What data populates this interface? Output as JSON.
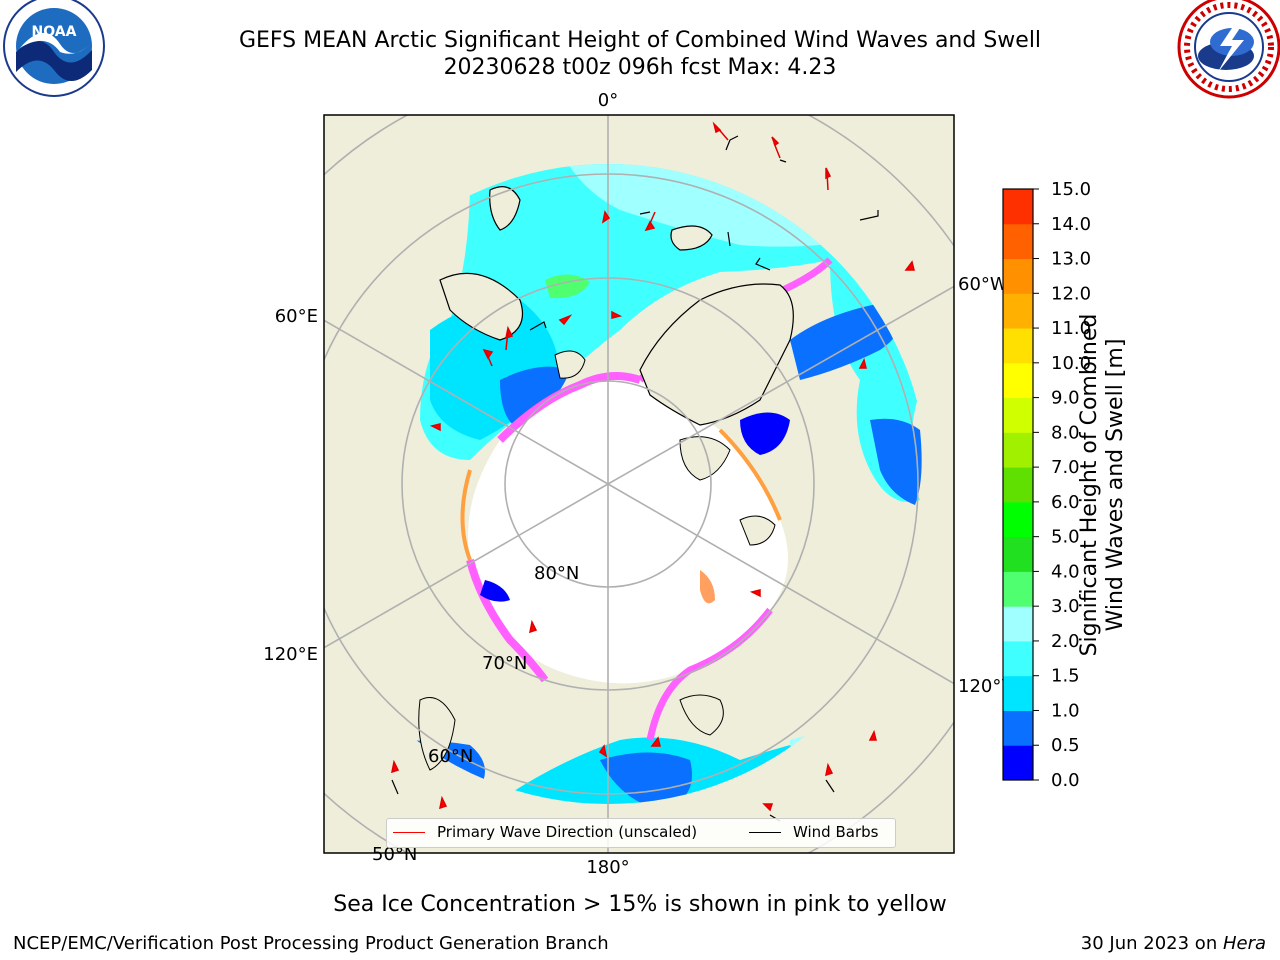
{
  "header": {
    "title_line1": "GEFS MEAN Arctic Significant Height of Combined Wind Waves and Swell",
    "title_line2": "20230628 t00z 096h fcst   Max: 4.23"
  },
  "logos": {
    "left": {
      "name": "NOAA",
      "text": "NOAA"
    },
    "right": {
      "name": "National Weather Service"
    }
  },
  "map": {
    "projection": "north-polar-stereographic",
    "longitude_labels": [
      "0°",
      "60°W",
      "120°W",
      "180°",
      "120°E",
      "60°E"
    ],
    "latitude_labels": [
      "80°N",
      "70°N",
      "60°N",
      "50°N"
    ],
    "colors": {
      "land": "#efeedb",
      "ice_white": "#ffffff",
      "grid": "#b0b0b0",
      "coast": "#000000"
    }
  },
  "legend": {
    "items": [
      {
        "label": "Primary Wave Direction (unscaled)",
        "color": "#ff0000"
      },
      {
        "label": "Wind Barbs",
        "color": "#000000"
      }
    ]
  },
  "colorbar": {
    "label": "Significant Height of Combined Wind Waves and Swell [m]",
    "label_line1": "Significant Height of Combined",
    "label_line2": "Wind Waves and Swell [m]",
    "ticks": [
      "0.0",
      "0.5",
      "1.0",
      "1.5",
      "2.0",
      "3.0",
      "4.0",
      "5.0",
      "6.0",
      "7.0",
      "8.0",
      "9.0",
      "10.0",
      "11.0",
      "12.0",
      "13.0",
      "14.0",
      "15.0"
    ],
    "colors": [
      "#0000ff",
      "#0a70ff",
      "#00e5ff",
      "#40ffff",
      "#a0ffff",
      "#50ff70",
      "#20e020",
      "#00ff00",
      "#60e000",
      "#a0f000",
      "#d0ff00",
      "#ffff00",
      "#ffe000",
      "#ffb000",
      "#ff9000",
      "#ff6000",
      "#ff3000"
    ]
  },
  "caption": "Sea Ice Concentration > 15% is shown in pink to yellow",
  "footer": {
    "left": "NCEP/EMC/Verification Post Processing Product Generation Branch",
    "right_date": "30 Jun 2023 on ",
    "right_host": "Hera"
  }
}
